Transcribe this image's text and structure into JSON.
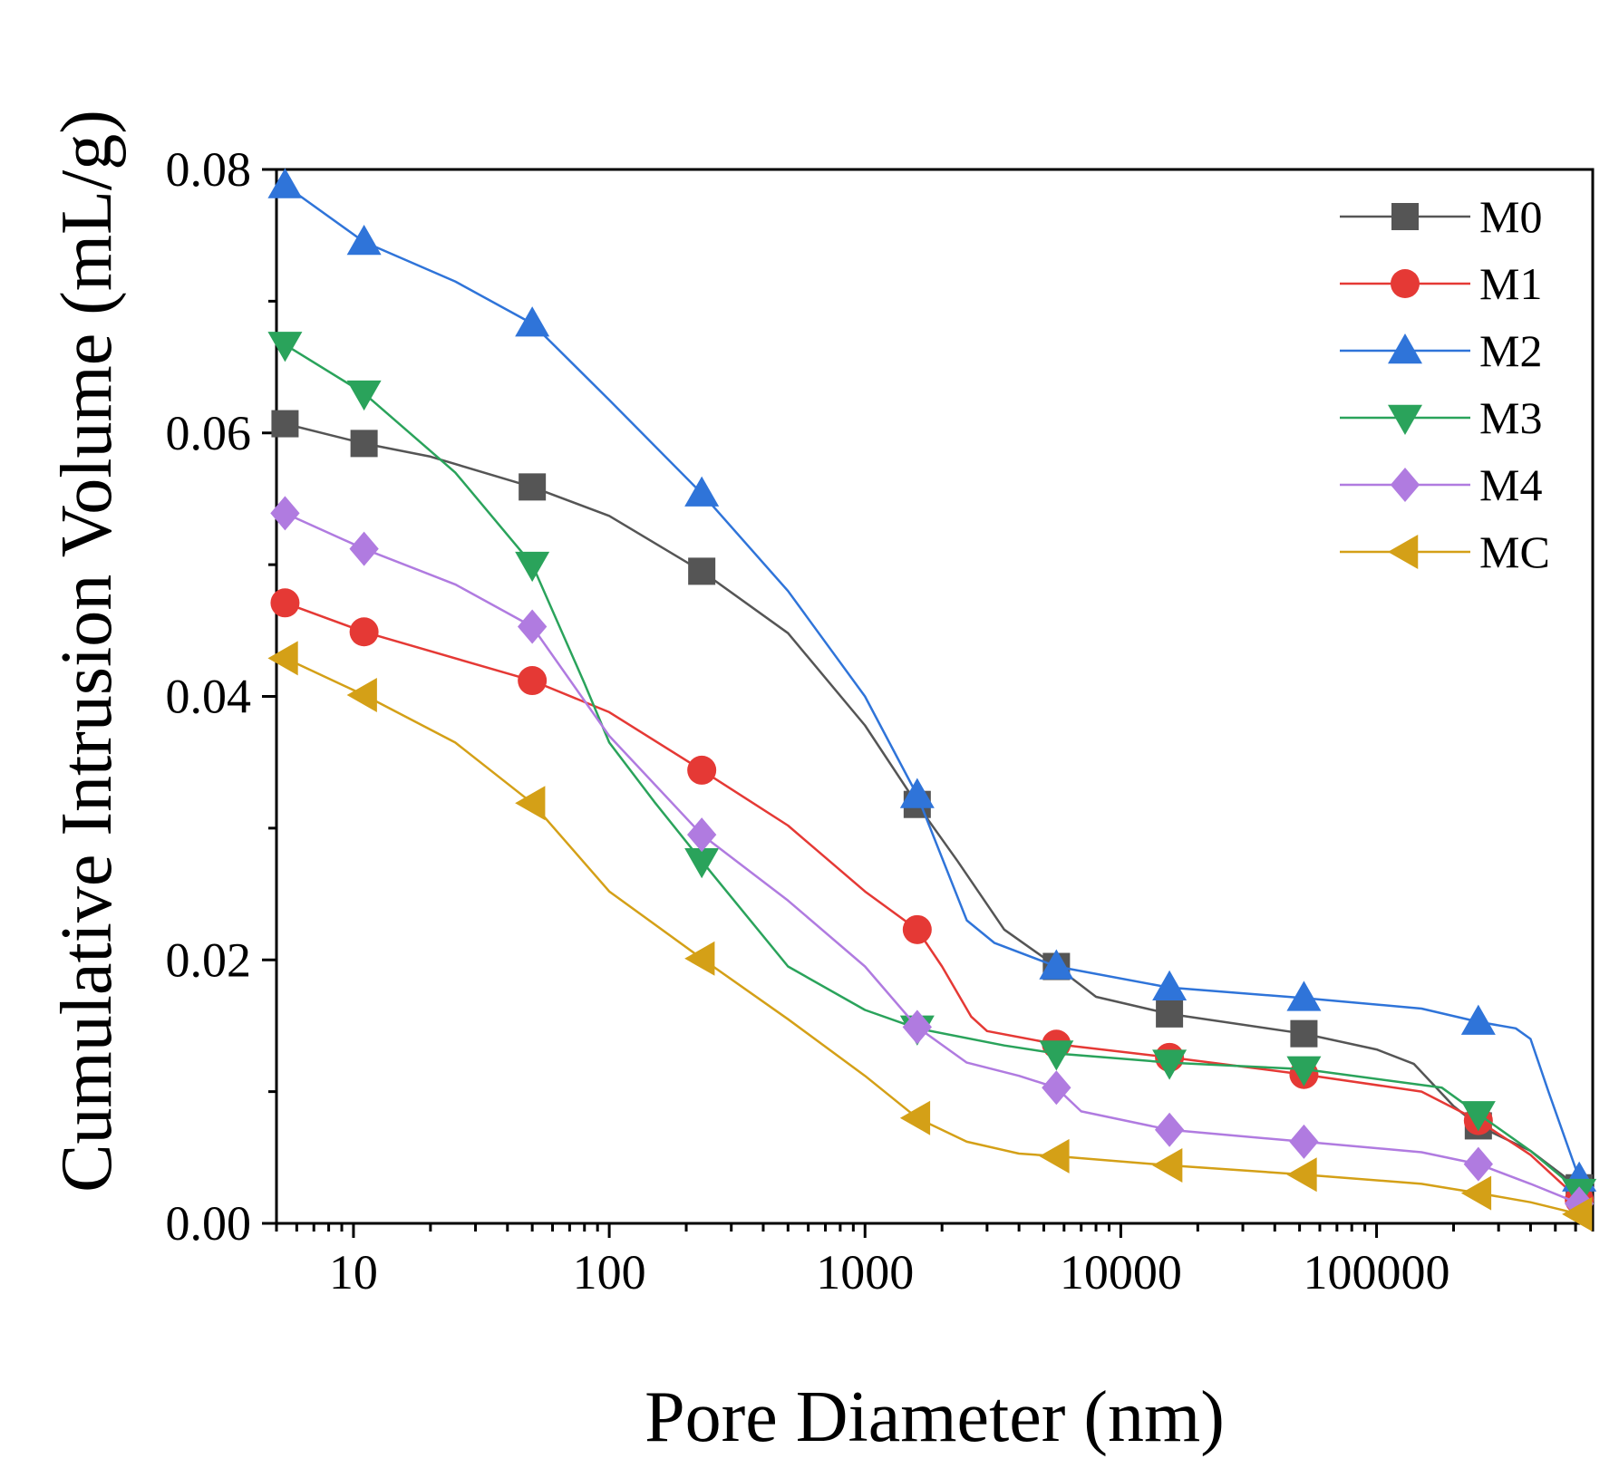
{
  "chart_data": {
    "type": "line",
    "title": "",
    "xlabel": "Pore Diameter (nm)",
    "ylabel": "Cumulative Intrusion Volume (mL/g)",
    "xscale": "log",
    "xlim": [
      5,
      700000
    ],
    "ylim": [
      0,
      0.08
    ],
    "x_ticks": [
      10,
      100,
      1000,
      10000,
      100000
    ],
    "x_tick_labels": [
      "10",
      "100",
      "1000",
      "10000",
      "100000"
    ],
    "y_ticks": [
      0,
      0.02,
      0.04,
      0.06,
      0.08
    ],
    "y_tick_labels": [
      "0.00",
      "0.02",
      "0.04",
      "0.06",
      "0.08"
    ],
    "legend_position": "top-right",
    "grid": false,
    "marker_x": [
      5.4,
      11,
      50,
      230,
      1600,
      5600,
      15500,
      52000,
      250000,
      620000
    ],
    "series": [
      {
        "name": "M0",
        "color": "#555555",
        "marker": "square",
        "line": [
          [
            5.4,
            0.0607
          ],
          [
            11,
            0.0592
          ],
          [
            20,
            0.0582
          ],
          [
            50,
            0.0559
          ],
          [
            100,
            0.0537
          ],
          [
            230,
            0.0495
          ],
          [
            500,
            0.0448
          ],
          [
            1000,
            0.0378
          ],
          [
            1600,
            0.0318
          ],
          [
            2300,
            0.0275
          ],
          [
            3500,
            0.0223
          ],
          [
            5600,
            0.0195
          ],
          [
            8000,
            0.0172
          ],
          [
            15500,
            0.0159
          ],
          [
            52000,
            0.0144
          ],
          [
            100000,
            0.0132
          ],
          [
            140000,
            0.0121
          ],
          [
            200000,
            0.0089
          ],
          [
            250000,
            0.0074
          ],
          [
            400000,
            0.0055
          ],
          [
            620000,
            0.0027
          ]
        ],
        "markers": [
          0.0607,
          0.0592,
          0.0559,
          0.0495,
          0.0318,
          0.0195,
          0.0159,
          0.0144,
          0.0074,
          0.0027
        ]
      },
      {
        "name": "M1",
        "color": "#e53935",
        "marker": "circle",
        "line": [
          [
            5.4,
            0.0471
          ],
          [
            11,
            0.0449
          ],
          [
            50,
            0.0412
          ],
          [
            100,
            0.0388
          ],
          [
            230,
            0.0344
          ],
          [
            500,
            0.0302
          ],
          [
            1000,
            0.0252
          ],
          [
            1600,
            0.0223
          ],
          [
            2000,
            0.0195
          ],
          [
            2600,
            0.0157
          ],
          [
            3000,
            0.0146
          ],
          [
            5600,
            0.0136
          ],
          [
            15500,
            0.0126
          ],
          [
            52000,
            0.0113
          ],
          [
            150000,
            0.01
          ],
          [
            250000,
            0.0078
          ],
          [
            400000,
            0.0052
          ],
          [
            620000,
            0.0018
          ]
        ],
        "markers": [
          0.0471,
          0.0449,
          0.0412,
          0.0344,
          0.0223,
          0.0136,
          0.0126,
          0.0113,
          0.0078,
          0.0018
        ]
      },
      {
        "name": "M2",
        "color": "#2f74d9",
        "marker": "triangle-up",
        "line": [
          [
            5.4,
            0.0788
          ],
          [
            11,
            0.0745
          ],
          [
            25,
            0.0715
          ],
          [
            50,
            0.0683
          ],
          [
            100,
            0.0625
          ],
          [
            230,
            0.0554
          ],
          [
            500,
            0.048
          ],
          [
            1000,
            0.04
          ],
          [
            1600,
            0.0325
          ],
          [
            2500,
            0.023
          ],
          [
            3200,
            0.0213
          ],
          [
            5600,
            0.0195
          ],
          [
            15500,
            0.0179
          ],
          [
            52000,
            0.0171
          ],
          [
            150000,
            0.0163
          ],
          [
            250000,
            0.0153
          ],
          [
            350000,
            0.0148
          ],
          [
            400000,
            0.014
          ],
          [
            470000,
            0.01
          ],
          [
            620000,
            0.0034
          ]
        ],
        "markers": [
          0.0788,
          0.0745,
          0.0683,
          0.0554,
          0.0325,
          0.0195,
          0.0179,
          0.0171,
          0.0153,
          0.0034
        ]
      },
      {
        "name": "M3",
        "color": "#2aa35b",
        "marker": "triangle-down",
        "line": [
          [
            5.4,
            0.0667
          ],
          [
            11,
            0.063
          ],
          [
            25,
            0.057
          ],
          [
            50,
            0.05
          ],
          [
            80,
            0.041
          ],
          [
            100,
            0.0365
          ],
          [
            150,
            0.032
          ],
          [
            230,
            0.0275
          ],
          [
            500,
            0.0195
          ],
          [
            1000,
            0.0162
          ],
          [
            1600,
            0.0148
          ],
          [
            3500,
            0.0135
          ],
          [
            5600,
            0.0129
          ],
          [
            15500,
            0.0122
          ],
          [
            52000,
            0.0117
          ],
          [
            180000,
            0.0103
          ],
          [
            250000,
            0.0083
          ],
          [
            400000,
            0.0055
          ],
          [
            620000,
            0.0024
          ]
        ],
        "markers": [
          0.0667,
          0.063,
          0.05,
          0.0275,
          0.0148,
          0.0129,
          0.0122,
          0.0117,
          0.0083,
          0.0024
        ]
      },
      {
        "name": "M4",
        "color": "#b07be0",
        "marker": "diamond",
        "line": [
          [
            5.4,
            0.0539
          ],
          [
            11,
            0.0512
          ],
          [
            25,
            0.0485
          ],
          [
            50,
            0.0453
          ],
          [
            100,
            0.037
          ],
          [
            230,
            0.0295
          ],
          [
            500,
            0.0245
          ],
          [
            1000,
            0.0195
          ],
          [
            1600,
            0.0149
          ],
          [
            2500,
            0.0122
          ],
          [
            4000,
            0.0112
          ],
          [
            5600,
            0.0103
          ],
          [
            7000,
            0.0085
          ],
          [
            15500,
            0.0071
          ],
          [
            52000,
            0.0062
          ],
          [
            150000,
            0.0054
          ],
          [
            250000,
            0.0045
          ],
          [
            400000,
            0.003
          ],
          [
            620000,
            0.0015
          ]
        ],
        "markers": [
          0.0539,
          0.0512,
          0.0453,
          0.0295,
          0.0149,
          0.0103,
          0.0071,
          0.0062,
          0.0045,
          0.0015
        ]
      },
      {
        "name": "MC",
        "color": "#d4a017",
        "marker": "triangle-left",
        "line": [
          [
            5.4,
            0.0429
          ],
          [
            11,
            0.0401
          ],
          [
            25,
            0.0365
          ],
          [
            50,
            0.0319
          ],
          [
            100,
            0.0252
          ],
          [
            230,
            0.0201
          ],
          [
            500,
            0.0155
          ],
          [
            1000,
            0.0112
          ],
          [
            1600,
            0.008
          ],
          [
            2500,
            0.0062
          ],
          [
            4000,
            0.0053
          ],
          [
            5600,
            0.0051
          ],
          [
            15500,
            0.0044
          ],
          [
            52000,
            0.0037
          ],
          [
            150000,
            0.003
          ],
          [
            250000,
            0.0023
          ],
          [
            400000,
            0.0016
          ],
          [
            620000,
            0.0007
          ]
        ],
        "markers": [
          0.0429,
          0.0401,
          0.0319,
          0.0201,
          0.008,
          0.0051,
          0.0044,
          0.0037,
          0.0023,
          0.0007
        ]
      }
    ]
  }
}
